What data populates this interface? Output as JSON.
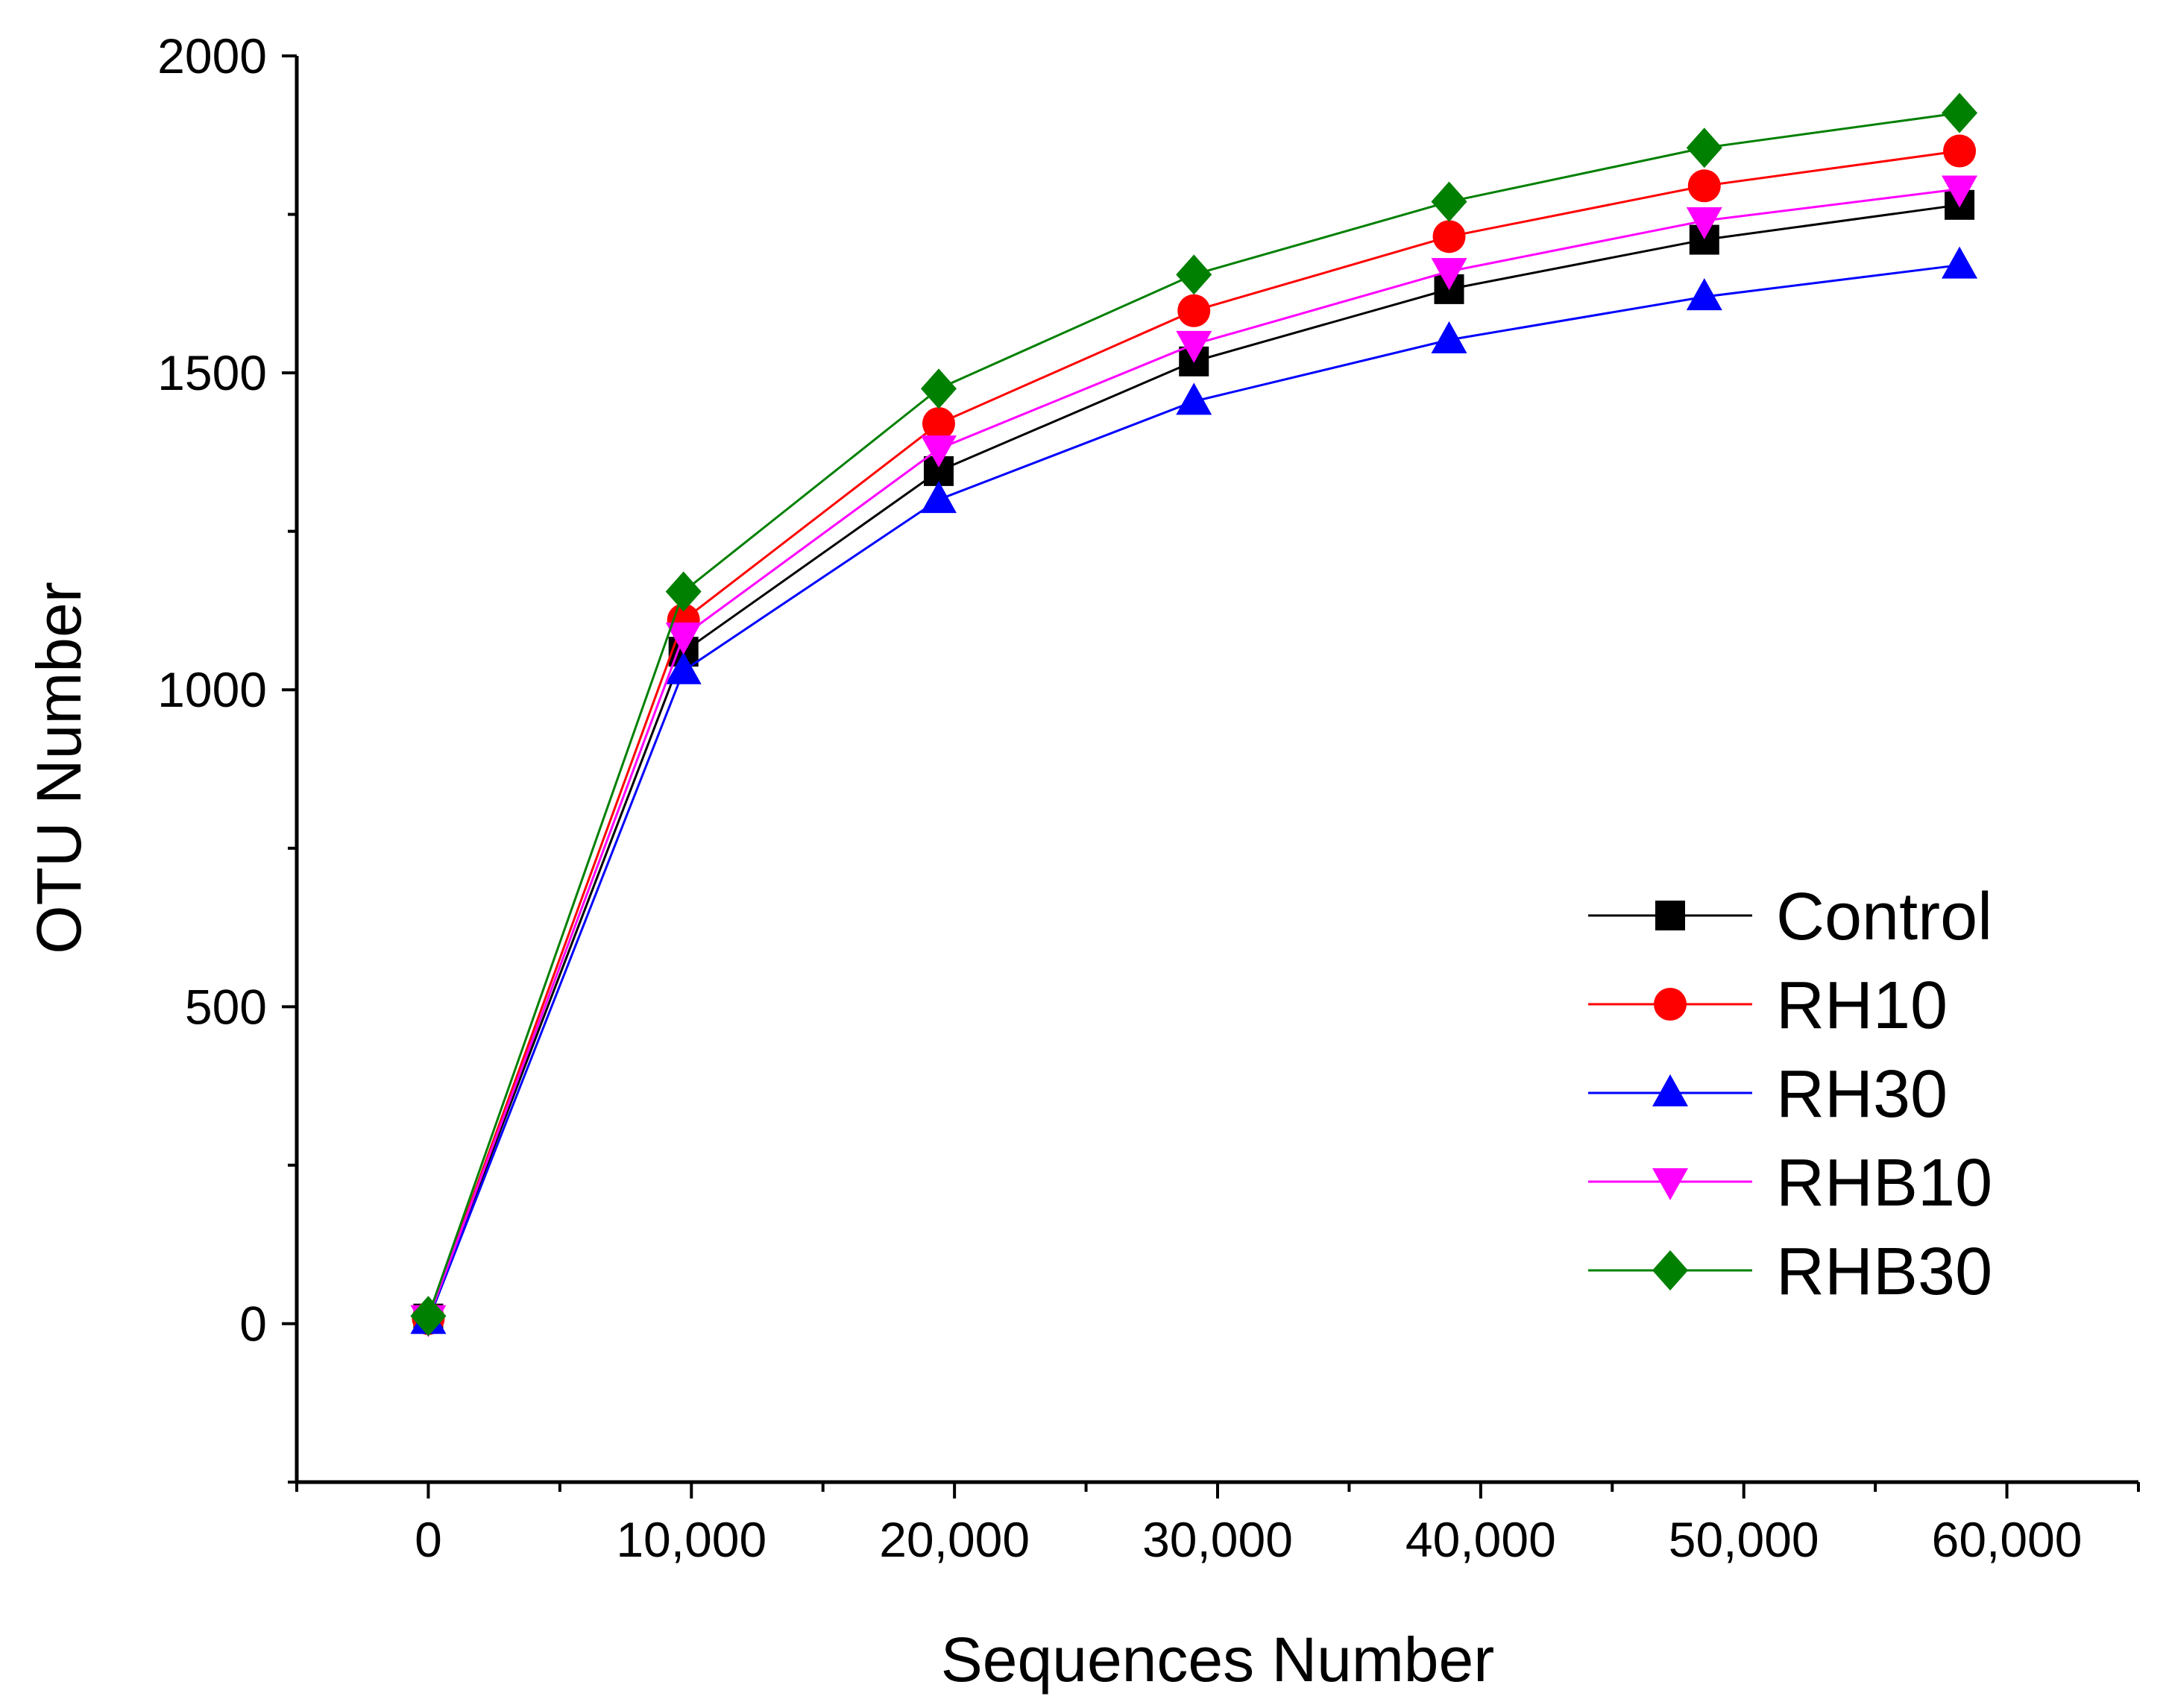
{
  "chart_data": {
    "type": "line",
    "title": "",
    "xlabel": "Sequences Number",
    "ylabel": "OTU Number",
    "xlim": [
      -5000,
      65000
    ],
    "ylim": [
      -250,
      2000
    ],
    "xticks": [
      0,
      10000,
      20000,
      30000,
      40000,
      50000,
      60000
    ],
    "xtick_labels": [
      "0",
      "10,000",
      "20,000",
      "30,000",
      "40,000",
      "50,000",
      "60,000"
    ],
    "yticks": [
      0,
      500,
      1000,
      1500,
      2000
    ],
    "ytick_labels": [
      "0",
      "500",
      "1000",
      "1500",
      "2000"
    ],
    "legend_position": "center-right",
    "x": [
      0,
      9700,
      19400,
      29100,
      38800,
      48500,
      58200
    ],
    "series": [
      {
        "name": "Control",
        "color": "#000000",
        "marker": "square",
        "values": [
          8,
          1060,
          1345,
          1518,
          1632,
          1710,
          1765
        ]
      },
      {
        "name": "RH10",
        "color": "#ff0000",
        "marker": "circle",
        "values": [
          8,
          1110,
          1420,
          1598,
          1715,
          1795,
          1850
        ]
      },
      {
        "name": "RH30",
        "color": "#0000ff",
        "marker": "triangle-up",
        "values": [
          5,
          1030,
          1300,
          1455,
          1552,
          1620,
          1670
        ]
      },
      {
        "name": "RHB10",
        "color": "#ff00ff",
        "marker": "triangle-down",
        "values": [
          8,
          1085,
          1380,
          1545,
          1660,
          1740,
          1790
        ]
      },
      {
        "name": "RHB30",
        "color": "#008000",
        "marker": "diamond",
        "values": [
          12,
          1155,
          1475,
          1655,
          1770,
          1855,
          1910
        ]
      }
    ]
  }
}
